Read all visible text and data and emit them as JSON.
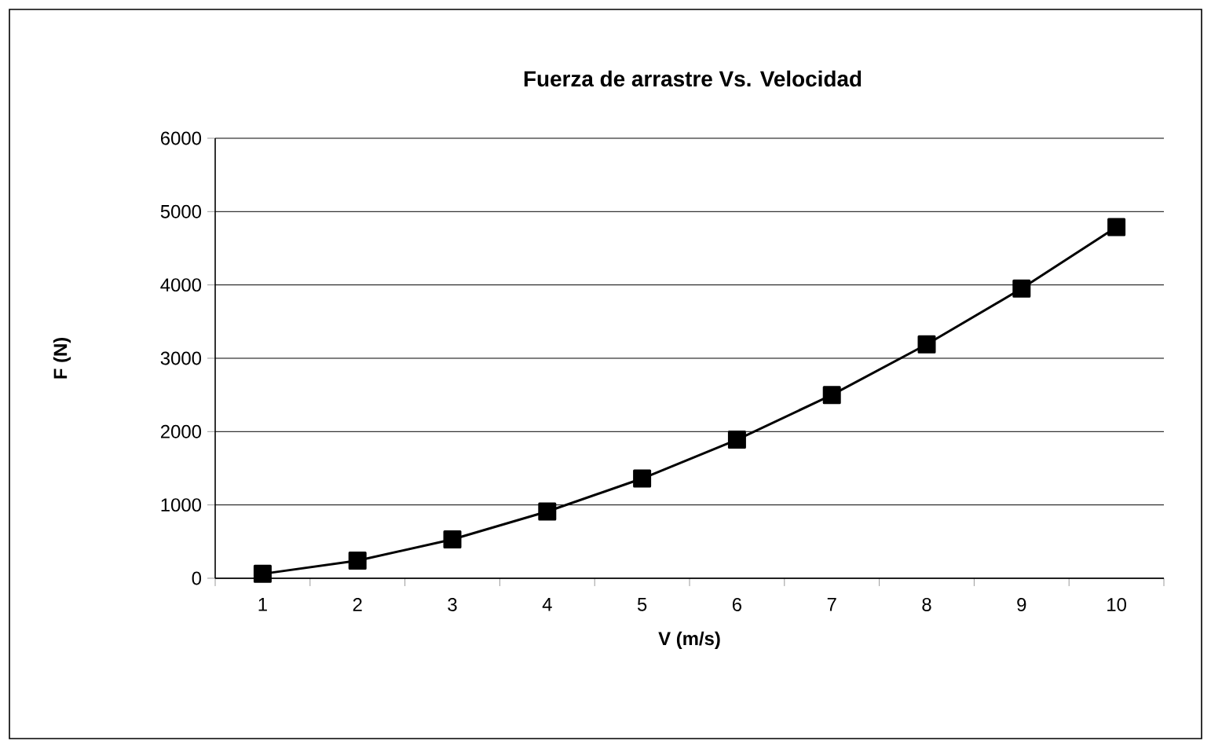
{
  "chart_data": {
    "type": "line",
    "title": "Fuerza de arrastre Vs. Velocidad",
    "xlabel": "V (m/s)",
    "ylabel": "F (N)",
    "categories": [
      "1",
      "2",
      "3",
      "4",
      "5",
      "6",
      "7",
      "8",
      "9",
      "10"
    ],
    "series": [
      {
        "color": "#000000",
        "values": [
          60,
          240,
          530,
          910,
          1360,
          1890,
          2500,
          3190,
          3950,
          4790
        ]
      }
    ],
    "ylim": [
      0,
      6000
    ],
    "yticks": [
      0,
      1000,
      2000,
      3000,
      4000,
      5000,
      6000
    ],
    "grid": "y",
    "marker": "square",
    "line_style": "solid"
  }
}
